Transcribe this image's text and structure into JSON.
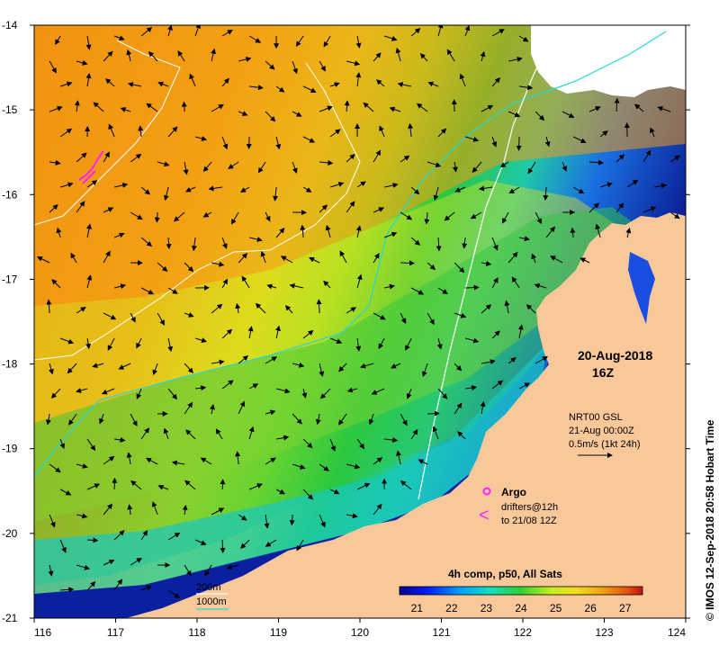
{
  "map": {
    "lon_ticks": [
      "116",
      "117",
      "118",
      "119",
      "120",
      "121",
      "122",
      "123",
      "124"
    ],
    "lat_ticks": [
      "-14",
      "-15",
      "-16",
      "-17",
      "-18",
      "-19",
      "-20",
      "-21"
    ],
    "lon_range": [
      116,
      124
    ],
    "lat_range": [
      -21,
      -14
    ],
    "date": "20-Aug-2018",
    "time": "16Z",
    "currents_source": "NRT00 GSL",
    "currents_time": "21-Aug 00:00Z",
    "vector_scale": "0.5m/s (1kt 24h)",
    "argo_label": "Argo",
    "drifters_line1": "drifters@12h",
    "drifters_line2": "to 21/08 12Z",
    "drifter_symbol": "<",
    "contour_200_label": "200m",
    "contour_1000_label": "1000m",
    "colorbar_title": "4h comp, p50, All Sats",
    "colorbar_ticks": [
      "21",
      "22",
      "23",
      "24",
      "25",
      "26",
      "27"
    ],
    "colorbar_range": [
      20.5,
      27.5
    ],
    "credit": "© IMOS 12-Sep-2018 20:58 Hobart Time",
    "colors": {
      "land": "#f9c89a",
      "contour_200": "#ffffff",
      "contour_1000": "#22d8d8",
      "argo": "#ff22ff",
      "drifter": "#ff22ff"
    }
  }
}
